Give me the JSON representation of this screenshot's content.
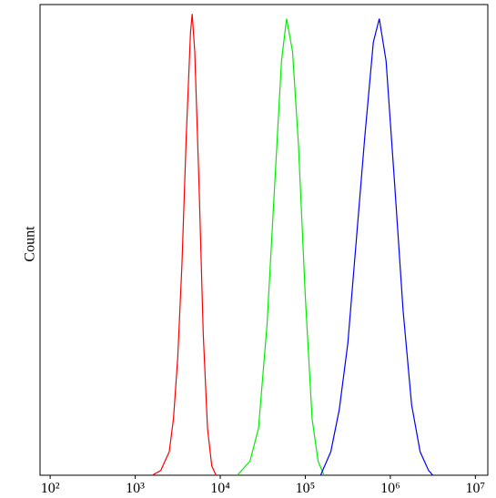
{
  "chart_data": {
    "type": "line",
    "y_label": "Count",
    "xscale": "log",
    "xlim": [
      76,
      14000000
    ],
    "ylim": [
      0,
      100
    ],
    "xticks": [
      {
        "value": 100,
        "label": "10²"
      },
      {
        "value": 1000,
        "label": "10³"
      },
      {
        "value": 10000,
        "label": "10⁴"
      },
      {
        "value": 100000,
        "label": "10⁵"
      },
      {
        "value": 1000000,
        "label": "10⁶"
      },
      {
        "value": 10000000,
        "label": "10⁷"
      }
    ],
    "series": [
      {
        "color": "#ff0000",
        "x": [
          1585,
          1995,
          2512,
          2818,
          3162,
          3548,
          3981,
          4467,
          4677,
          5012,
          5623,
          6310,
          7079,
          7943,
          8913
        ],
        "values": [
          0,
          1,
          5,
          12,
          25,
          45,
          72,
          94,
          98,
          90,
          62,
          30,
          10,
          2,
          0
        ]
      },
      {
        "color": "#00ee00",
        "x": [
          15849,
          22387,
          28184,
          35481,
          44668,
          52481,
          60256,
          70795,
          83176,
          100000,
          120226,
          141254,
          165959
        ],
        "values": [
          0,
          3,
          10,
          32,
          65,
          88,
          97,
          90,
          70,
          38,
          12,
          3,
          0
        ]
      },
      {
        "color": "#0000ff",
        "x": [
          151356,
          199526,
          251189,
          316228,
          398107,
          501187,
          630957,
          741310,
          891251,
          1122018,
          1412538,
          1778279,
          2238721,
          2818383,
          3162278
        ],
        "values": [
          0,
          5,
          14,
          28,
          50,
          72,
          92,
          97,
          88,
          62,
          35,
          15,
          5,
          1,
          0
        ]
      }
    ]
  }
}
